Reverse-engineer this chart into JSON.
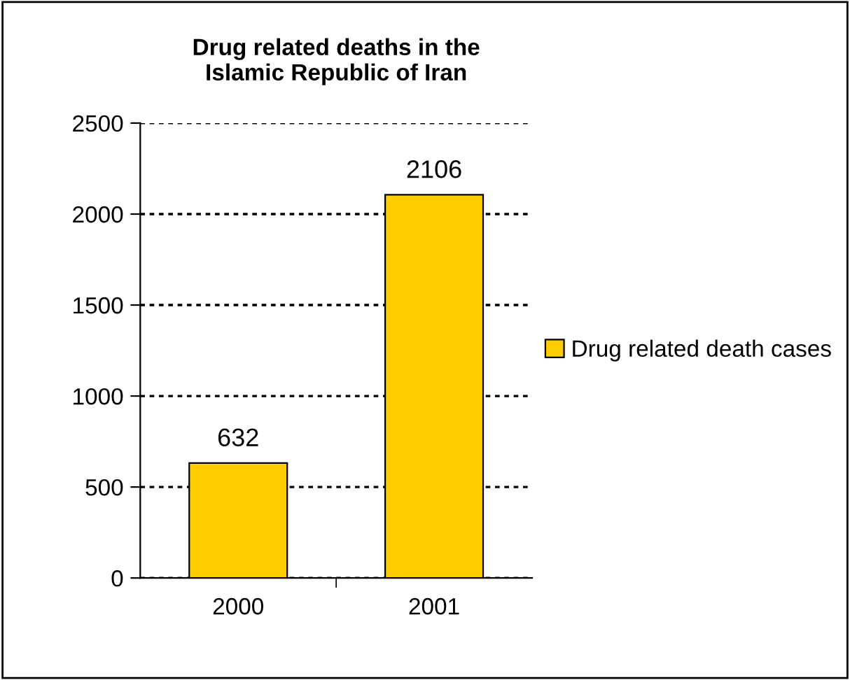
{
  "chart_data": {
    "type": "bar",
    "title": "Drug related deaths in the\nIslamic Republic of Iran",
    "categories": [
      "2000",
      "2001"
    ],
    "series": [
      {
        "name": "Drug related death cases",
        "color": "#ffcc00",
        "values": [
          632,
          2106
        ]
      }
    ],
    "ylim": [
      0,
      2500
    ],
    "yticks": [
      0,
      500,
      1000,
      1500,
      2000,
      2500
    ],
    "grid": "y",
    "legend": "right",
    "data_labels": true
  }
}
